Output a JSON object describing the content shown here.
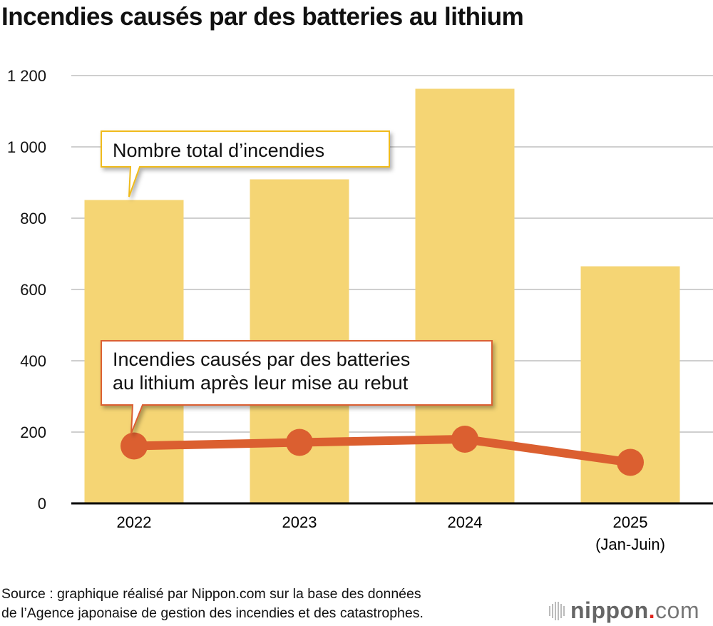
{
  "chart_data": {
    "type": "bar",
    "title": "Incendies causés par des batteries au lithium",
    "categories": [
      "2022",
      "2023",
      "2024",
      "2025"
    ],
    "category_sublabels": [
      "",
      "",
      "",
      "(Jan-Juin)"
    ],
    "ylim": [
      0,
      1200
    ],
    "yticks": [
      0,
      200,
      400,
      600,
      800,
      1000,
      1200
    ],
    "ytick_labels": [
      "0",
      "200",
      "400",
      "600",
      "800",
      "1 000",
      "1 200"
    ],
    "grid": true,
    "series": [
      {
        "name": "Nombre total d’incendies",
        "type": "bar",
        "color": "#f5d574",
        "values": [
          851,
          909,
          1163,
          665
        ]
      },
      {
        "name": "Incendies causés par des batteries au lithium après leur mise au rebut",
        "type": "line",
        "color": "#db5f30",
        "values": [
          161,
          171,
          180,
          115
        ]
      }
    ],
    "annotations": [
      {
        "text": "Nombre total d’incendies",
        "series": 0,
        "border_color": "#f0bb1a"
      },
      {
        "lines": [
          "Incendies causés par des batteries",
          "au lithium après leur mise au rebut"
        ],
        "series": 1,
        "border_color": "#db5f30"
      }
    ]
  },
  "source": {
    "line1": "Source : graphique réalisé par Nippon.com sur la base des données",
    "line2": "de l’Agence japonaise de gestion des incendies et des catastrophes."
  },
  "logo": {
    "name": "nippon",
    "dot": ".",
    "suffix": "com"
  }
}
